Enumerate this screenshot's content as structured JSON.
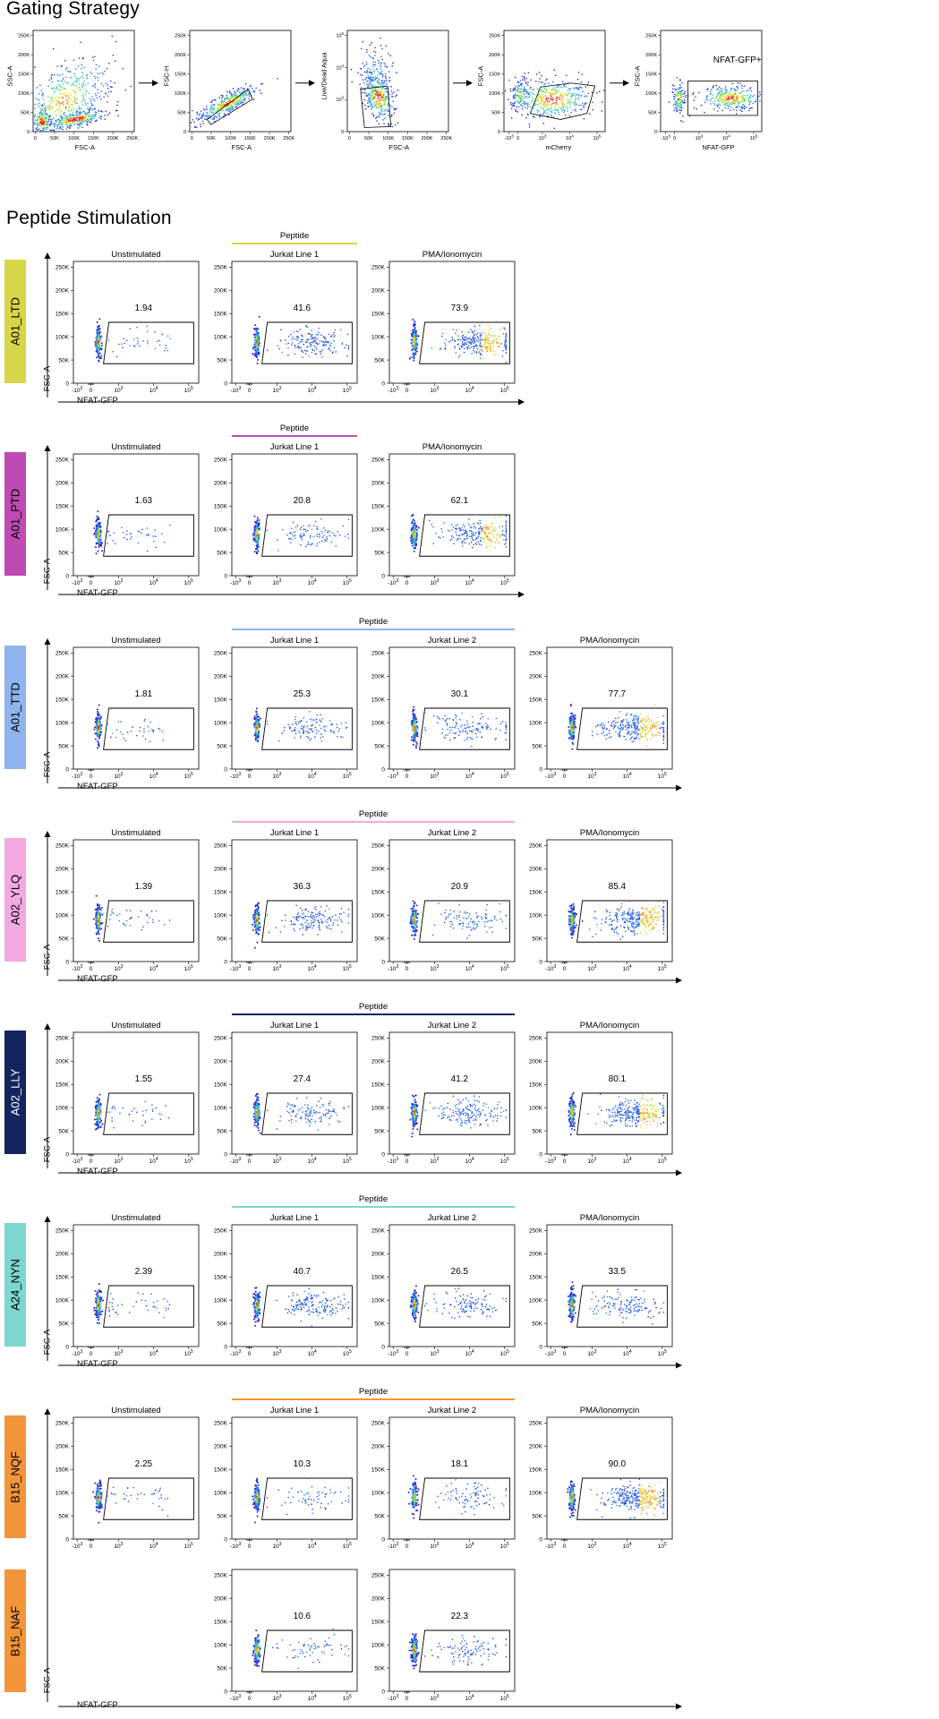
{
  "gating": {
    "title": "Gating Strategy",
    "panels": [
      {
        "x_label": "FSC-A",
        "y_label": "SSC-A",
        "x_ticks": [
          "0",
          "50K",
          "100K",
          "150K",
          "200K",
          "250K"
        ],
        "y_ticks": [
          "0",
          "50K",
          "100K",
          "150K",
          "200K",
          "250K"
        ],
        "population": "scatter-all"
      },
      {
        "x_label": "FSC-A",
        "y_label": "FSC-H",
        "x_ticks": [
          "0",
          "50K",
          "100K",
          "150K",
          "200K",
          "250K"
        ],
        "y_ticks": [
          "0",
          "50K",
          "100K",
          "150K",
          "200K",
          "250K"
        ],
        "population": "singlets"
      },
      {
        "x_label": "FSC-A",
        "y_label": "Live/Dead Aqua",
        "x_ticks": [
          "0",
          "50K",
          "100K",
          "150K",
          "200K",
          "250K"
        ],
        "y_ticks": [
          "0",
          "10^3",
          "10^4",
          "10^5"
        ],
        "population": "live"
      },
      {
        "x_label": "mCherry",
        "y_label": "FSC-A",
        "x_ticks": [
          "-10^3",
          "0",
          "10^3",
          "10^4",
          "10^5"
        ],
        "y_ticks": [
          "0",
          "50K",
          "100K",
          "150K",
          "200K",
          "250K"
        ],
        "population": "mcherry"
      },
      {
        "x_label": "NFAT-GFP",
        "y_label": "FSC-A",
        "x_ticks": [
          "-10^3",
          "0",
          "10^3",
          "10^4",
          "10^5"
        ],
        "y_ticks": [
          "0",
          "50K",
          "100K",
          "150K",
          "200K",
          "250K"
        ],
        "population": "nfat",
        "gate_label": "NFAT-GFP+"
      }
    ]
  },
  "stimulation": {
    "title": "Peptide Stimulation",
    "peptide_label": "Peptide",
    "gate_label": "NFAT-GFP+",
    "x_axis_label": "NFAT-GFP",
    "y_axis_label": "FSC-A",
    "fsc_ticks": [
      "0",
      "50K",
      "100K",
      "150K",
      "200K",
      "250K"
    ],
    "gfp_ticks": [
      "-10^3",
      "0",
      "10^3",
      "10^4",
      "10^5"
    ]
  },
  "chart_data": {
    "type": "scatter",
    "title": "Peptide Stimulation",
    "xlabel": "NFAT-GFP",
    "ylabel": "FSC-A",
    "ylim": [
      0,
      262144
    ],
    "x_scale": "biexponential",
    "gate": "NFAT-GFP+",
    "value_unit": "% of parent",
    "rows": [
      {
        "peptide": "A01_LTD",
        "color": "#d6d648",
        "panels": [
          {
            "condition": "Unstimulated",
            "nfat_gfp_pct": 1.94
          },
          {
            "condition": "Jurkat Line 1",
            "nfat_gfp_pct": 41.6,
            "peptide": true
          },
          {
            "condition": "PMA/Ionomycin",
            "nfat_gfp_pct": 73.9
          }
        ]
      },
      {
        "peptide": "A01_PTD",
        "color": "#be4bb4",
        "panels": [
          {
            "condition": "Unstimulated",
            "nfat_gfp_pct": 1.63
          },
          {
            "condition": "Jurkat Line 1",
            "nfat_gfp_pct": 20.8,
            "peptide": true
          },
          {
            "condition": "PMA/Ionomycin",
            "nfat_gfp_pct": 62.1
          }
        ]
      },
      {
        "peptide": "A01_TTD",
        "color": "#8fb3ec",
        "panels": [
          {
            "condition": "Unstimulated",
            "nfat_gfp_pct": 1.81
          },
          {
            "condition": "Jurkat Line 1",
            "nfat_gfp_pct": 25.3,
            "peptide": true
          },
          {
            "condition": "Jurkat Line 2",
            "nfat_gfp_pct": 30.1,
            "peptide": true
          },
          {
            "condition": "PMA/Ionomycin",
            "nfat_gfp_pct": 77.7
          }
        ]
      },
      {
        "peptide": "A02_YLQ",
        "color": "#f2a9e2",
        "panels": [
          {
            "condition": "Unstimulated",
            "nfat_gfp_pct": 1.39
          },
          {
            "condition": "Jurkat Line 1",
            "nfat_gfp_pct": 36.3,
            "peptide": true
          },
          {
            "condition": "Jurkat Line 2",
            "nfat_gfp_pct": 20.9,
            "peptide": true
          },
          {
            "condition": "PMA/Ionomycin",
            "nfat_gfp_pct": 85.4
          }
        ]
      },
      {
        "peptide": "A02_LLY",
        "color": "#14255e",
        "panels": [
          {
            "condition": "Unstimulated",
            "nfat_gfp_pct": 1.55
          },
          {
            "condition": "Jurkat Line 1",
            "nfat_gfp_pct": 27.4,
            "peptide": true
          },
          {
            "condition": "Jurkat Line 2",
            "nfat_gfp_pct": 41.2,
            "peptide": true
          },
          {
            "condition": "PMA/Ionomycin",
            "nfat_gfp_pct": 80.1
          }
        ]
      },
      {
        "peptide": "A24_NYN",
        "color": "#7dd6cf",
        "panels": [
          {
            "condition": "Unstimulated",
            "nfat_gfp_pct": 2.39
          },
          {
            "condition": "Jurkat Line 1",
            "nfat_gfp_pct": 40.7,
            "peptide": true
          },
          {
            "condition": "Jurkat Line 2",
            "nfat_gfp_pct": 26.5,
            "peptide": true
          },
          {
            "condition": "PMA/Ionomycin",
            "nfat_gfp_pct": 33.5
          }
        ]
      },
      {
        "peptide": "B15_NQF",
        "color": "#f2943a",
        "panels": [
          {
            "condition": "Unstimulated",
            "nfat_gfp_pct": 2.25
          },
          {
            "condition": "Jurkat Line 1",
            "nfat_gfp_pct": 10.3,
            "peptide": true
          },
          {
            "condition": "Jurkat Line 2",
            "nfat_gfp_pct": 18.1,
            "peptide": true
          },
          {
            "condition": "PMA/Ionomycin",
            "nfat_gfp_pct": 90.0
          }
        ]
      },
      {
        "peptide": "B15_NAF",
        "color": "#f2943a",
        "panels": [
          {
            "condition": "Jurkat Line 1",
            "nfat_gfp_pct": 10.6,
            "peptide": true
          },
          {
            "condition": "Jurkat Line 2",
            "nfat_gfp_pct": 22.3,
            "peptide": true
          }
        ]
      }
    ]
  }
}
